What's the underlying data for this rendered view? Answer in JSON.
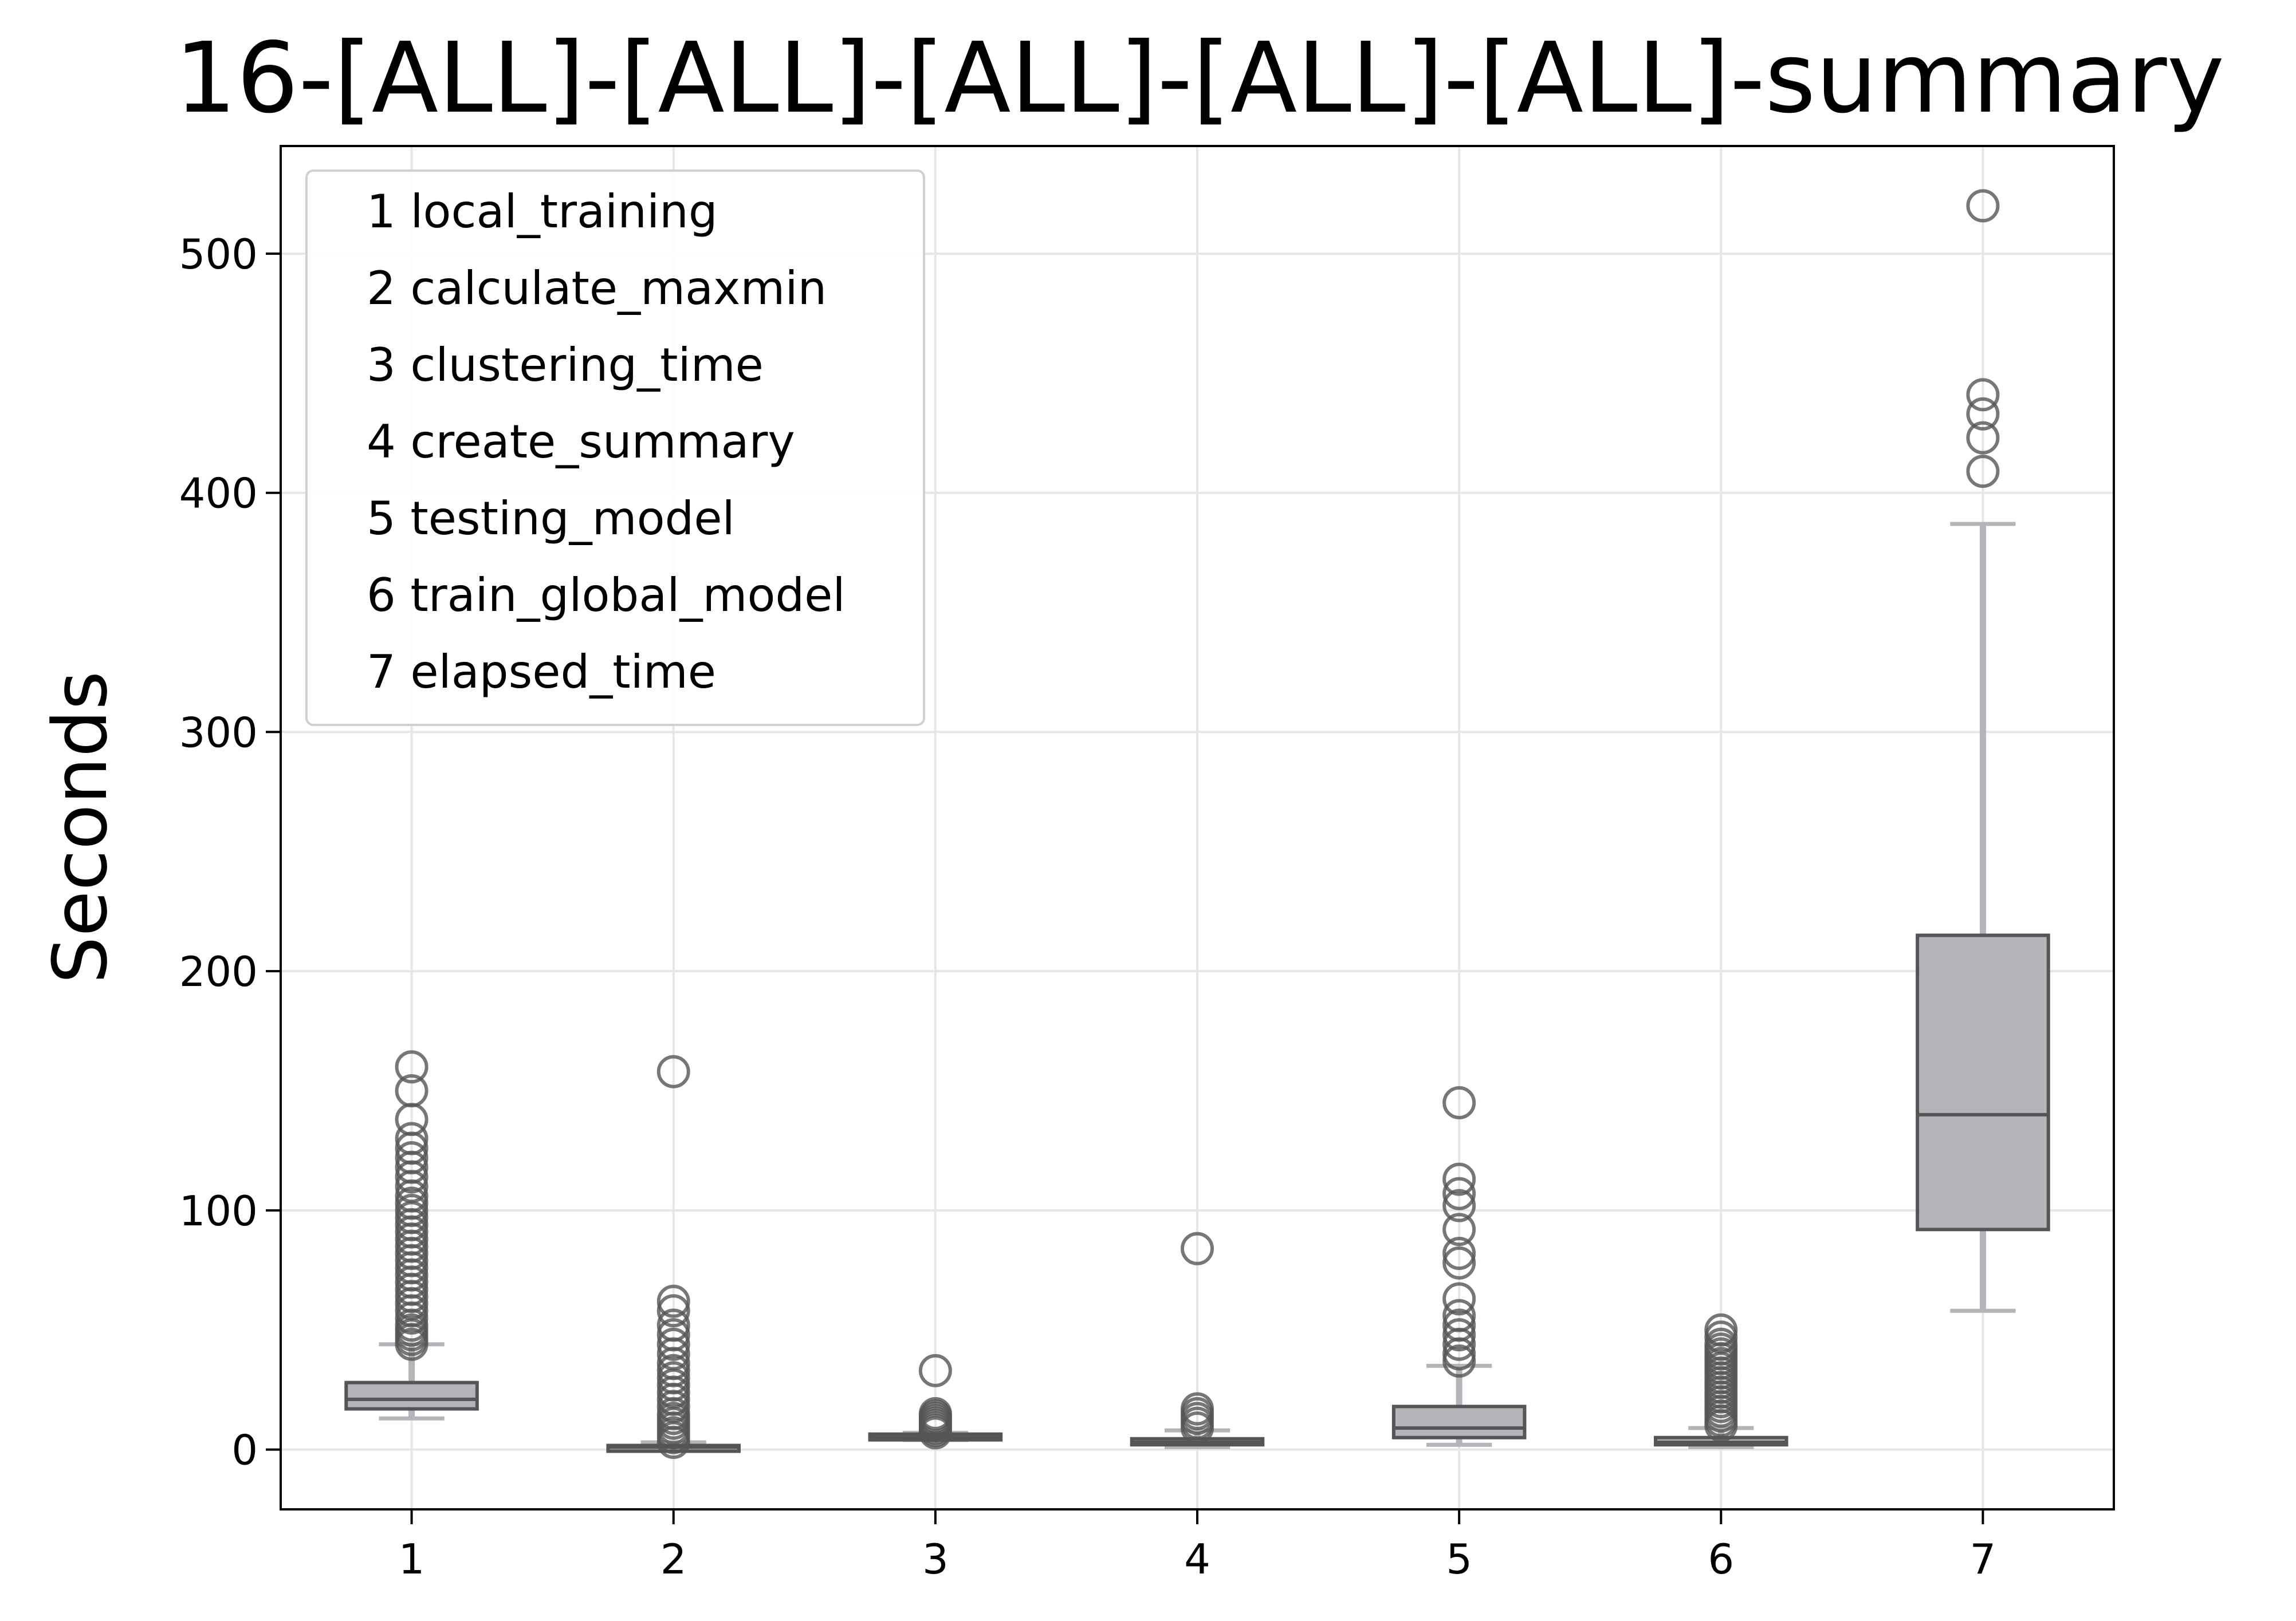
{
  "chart_data": {
    "type": "box",
    "title": "16-[ALL]-[ALL]-[ALL]-[ALL]-[ALL]-summary",
    "xlabel": "",
    "ylabel": "Seconds",
    "ylim": [
      -25,
      545
    ],
    "xlim": [
      0.5,
      7.5
    ],
    "yticks": [
      0,
      100,
      200,
      300,
      400,
      500
    ],
    "categories": [
      "1",
      "2",
      "3",
      "4",
      "5",
      "6",
      "7"
    ],
    "grid": true,
    "legend_position": "top-left",
    "legend": [
      "1 local_training",
      "2 calculate_maxmin",
      "3 clustering_time",
      "4 create_summary",
      "5 testing_model",
      "6 train_global_model",
      "7 elapsed_time"
    ],
    "colors": {
      "box_fill": "#b3b5ba",
      "box_edge": "#555555",
      "whisker": "#b3b5ba",
      "outlier": "#555555",
      "grid": "#e6e6e6"
    },
    "boxes": [
      {
        "category": "1",
        "whislo": 13,
        "q1": 17,
        "med": 21,
        "q3": 28,
        "whishi": 44,
        "fliers": [
          44,
          46,
          48,
          50,
          52,
          55,
          58,
          61,
          64,
          67,
          70,
          73,
          76,
          79,
          82,
          85,
          88,
          91,
          94,
          97,
          100,
          103,
          106,
          110,
          114,
          118,
          122,
          126,
          130,
          138,
          150,
          160
        ]
      },
      {
        "category": "2",
        "whislo": 0,
        "q1": 0,
        "med": 1,
        "q3": 1,
        "whishi": 3,
        "fliers": [
          3,
          5,
          7,
          9,
          11,
          13,
          15,
          18,
          21,
          24,
          27,
          30,
          33,
          36,
          40,
          44,
          48,
          52,
          58,
          62,
          158
        ]
      },
      {
        "category": "3",
        "whislo": 4,
        "q1": 4.5,
        "med": 5,
        "q3": 6,
        "whishi": 7,
        "fliers": [
          7,
          8,
          9,
          10,
          11,
          12,
          13,
          14,
          15,
          33
        ]
      },
      {
        "category": "4",
        "whislo": 1,
        "q1": 2,
        "med": 3,
        "q3": 4.5,
        "whishi": 8,
        "fliers": [
          9,
          11,
          13,
          15,
          17,
          84
        ]
      },
      {
        "category": "5",
        "whislo": 2,
        "q1": 5,
        "med": 9,
        "q3": 18,
        "whishi": 35,
        "fliers": [
          37,
          40,
          44,
          48,
          52,
          56,
          63,
          78,
          82,
          92,
          102,
          107,
          113,
          145
        ]
      },
      {
        "category": "6",
        "whislo": 1,
        "q1": 2,
        "med": 3,
        "q3": 5,
        "whishi": 9,
        "fliers": [
          10,
          12,
          14,
          16,
          18,
          20,
          22,
          24,
          26,
          28,
          30,
          32,
          34,
          36,
          38,
          40,
          42,
          44,
          47,
          50
        ]
      },
      {
        "category": "7",
        "whislo": 58,
        "q1": 92,
        "med": 140,
        "q3": 215,
        "whishi": 387,
        "fliers": [
          409,
          423,
          433,
          441,
          520
        ]
      }
    ]
  }
}
